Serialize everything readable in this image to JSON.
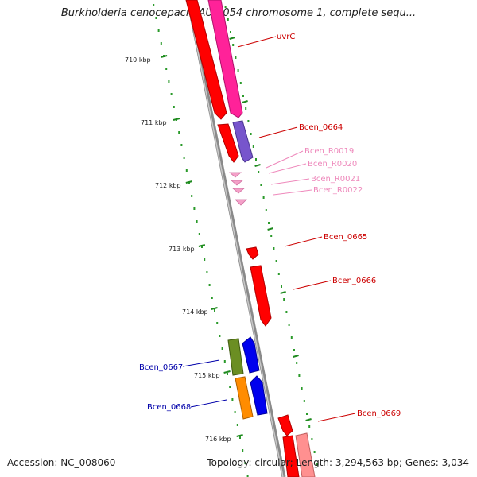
{
  "title": "Burkholderia cenocepacia AU 1054 chromosome 1, complete sequ...",
  "footer": {
    "accession": "Accession: NC_008060",
    "summary": "Topology: circular; Length: 3,294,563 bp; Genes: 3,034"
  },
  "ruler": {
    "labels": [
      "710 kbp",
      "711 kbp",
      "712 kbp",
      "713 kbp",
      "714 kbp",
      "715 kbp",
      "716 kbp"
    ]
  },
  "genes": [
    {
      "id": "uvrC",
      "label": "uvrC",
      "color": "#cc0000"
    },
    {
      "id": "Bcen_0664",
      "label": "Bcen_0664",
      "color": "#cc0000"
    },
    {
      "id": "Bcen_R0019",
      "label": "Bcen_R0019",
      "color": "#ee88bb"
    },
    {
      "id": "Bcen_R0020",
      "label": "Bcen_R0020",
      "color": "#ee88bb"
    },
    {
      "id": "Bcen_R0021",
      "label": "Bcen_R0021",
      "color": "#ee88bb"
    },
    {
      "id": "Bcen_R0022",
      "label": "Bcen_R0022",
      "color": "#ee88bb"
    },
    {
      "id": "Bcen_0665",
      "label": "Bcen_0665",
      "color": "#cc0000"
    },
    {
      "id": "Bcen_0666",
      "label": "Bcen_0666",
      "color": "#cc0000"
    },
    {
      "id": "Bcen_0667",
      "label": "Bcen_0667",
      "color": "#0000aa"
    },
    {
      "id": "Bcen_0668",
      "label": "Bcen_0668",
      "color": "#0000aa"
    },
    {
      "id": "Bcen_0669",
      "label": "Bcen_0669",
      "color": "#cc0000"
    }
  ]
}
